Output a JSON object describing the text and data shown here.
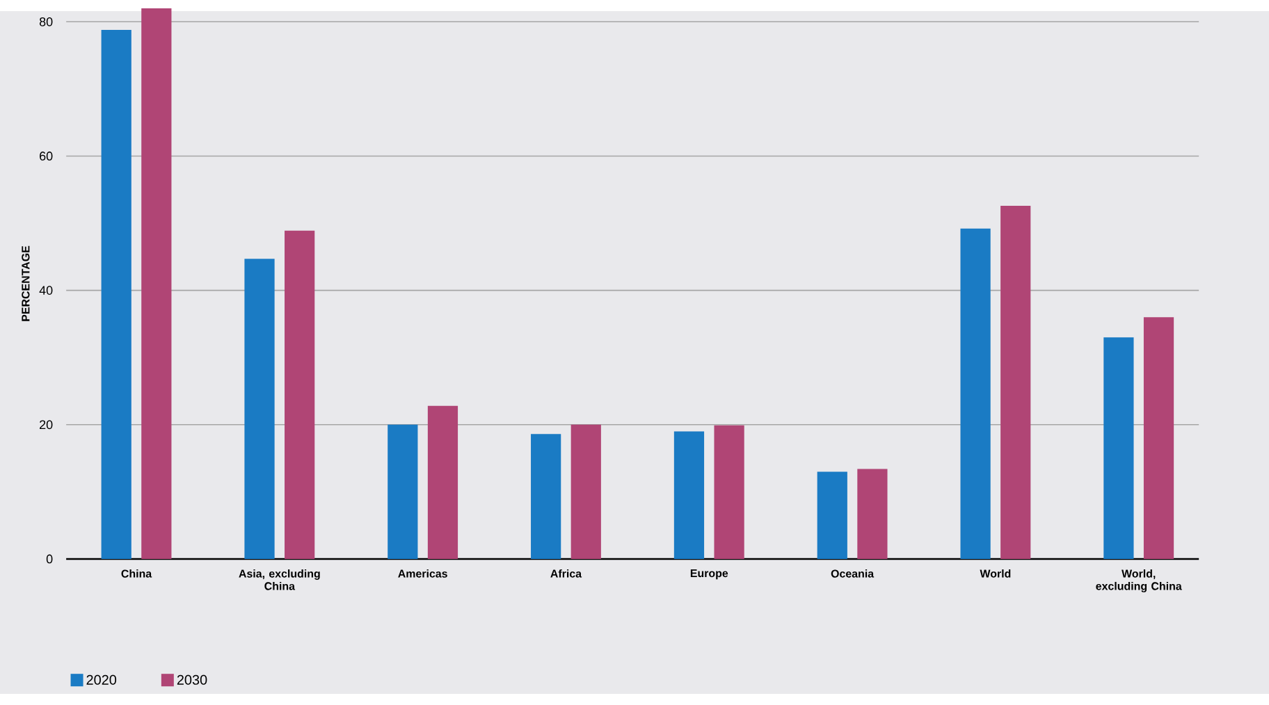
{
  "chart_data": {
    "type": "bar",
    "ylabel": "PERCENTAGE",
    "categories": [
      "China",
      "Asia, excluding China",
      "Americas",
      "Africa",
      "Europe",
      "Oceania",
      "World",
      "World, excluding China"
    ],
    "series": [
      {
        "name": "2020",
        "color": "#1a7bc4",
        "values": [
          78.8,
          44.7,
          20.0,
          18.6,
          19.0,
          13.0,
          49.2,
          33.0
        ]
      },
      {
        "name": "2030",
        "color": "#b04575",
        "values": [
          82,
          48.9,
          22.8,
          20.0,
          19.9,
          13.4,
          52.6,
          36.0
        ]
      }
    ],
    "ylim": [
      0,
      82
    ],
    "yticks": [
      0,
      20,
      40,
      60,
      80
    ],
    "grid": "y",
    "legend": "bottom left"
  }
}
